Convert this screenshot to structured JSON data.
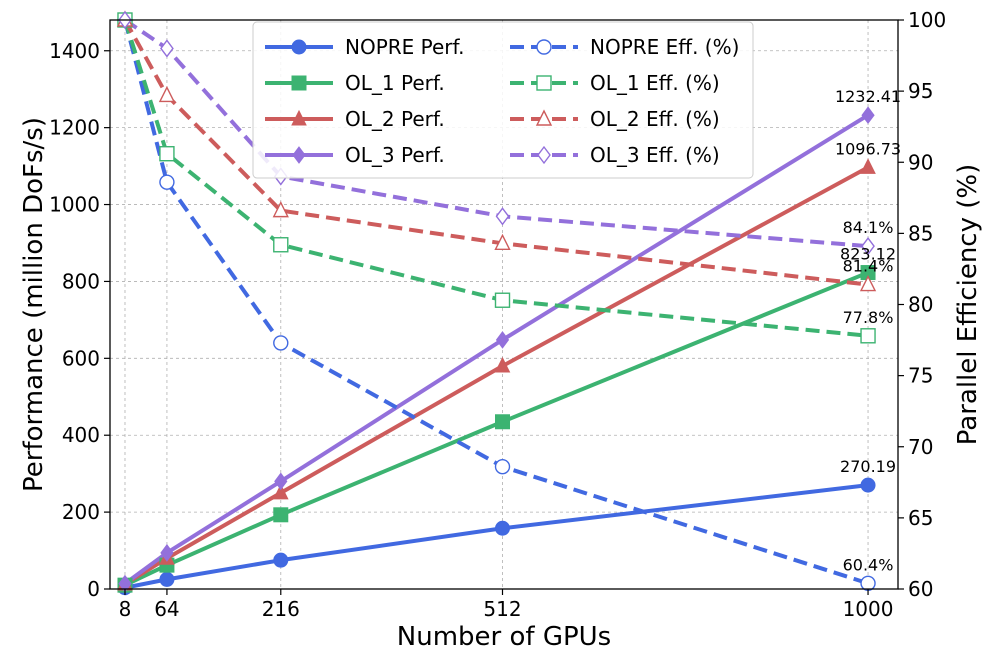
{
  "chart_data": {
    "type": "line",
    "x": [
      8,
      64,
      216,
      512,
      1000
    ],
    "xlabel": "Number of GPUs",
    "ylabel": "Performance (million DoFs/s)",
    "y2label": "Parallel Efficiency (%)",
    "x_ticks": [
      "8",
      "64",
      "216",
      "512",
      "1000"
    ],
    "ylim": [
      0,
      1480
    ],
    "y_ticks": [
      "0",
      "200",
      "400",
      "600",
      "800",
      "1000",
      "1200",
      "1400"
    ],
    "y2lim": [
      60,
      100
    ],
    "y2_ticks": [
      "60",
      "65",
      "70",
      "75",
      "80",
      "85",
      "90",
      "95",
      "100"
    ],
    "grid": true,
    "legend_position": "top-center",
    "series": [
      {
        "name": "NOPRE Perf.",
        "axis": "left",
        "color": "#4169E1",
        "style": "solid",
        "marker": "circle",
        "filled": true,
        "values": [
          3.4,
          25,
          75,
          158,
          270.19
        ]
      },
      {
        "name": "OL_1 Perf.",
        "axis": "left",
        "color": "#3CB371",
        "style": "solid",
        "marker": "square",
        "filled": true,
        "values": [
          10,
          62,
          193,
          435,
          823.12
        ]
      },
      {
        "name": "OL_2 Perf.",
        "axis": "left",
        "color": "#CD5C5C",
        "style": "solid",
        "marker": "triangle",
        "filled": true,
        "values": [
          13,
          80,
          250,
          580,
          1096.73
        ]
      },
      {
        "name": "OL_3 Perf.",
        "axis": "left",
        "color": "#9370DB",
        "style": "solid",
        "marker": "diamond",
        "filled": true,
        "values": [
          14,
          94,
          280,
          648,
          1232.41
        ]
      },
      {
        "name": "NOPRE Eff. (%)",
        "axis": "right",
        "color": "#4169E1",
        "style": "dashed",
        "marker": "circle",
        "filled": false,
        "values": [
          100,
          88.6,
          77.3,
          68.6,
          60.4
        ]
      },
      {
        "name": "OL_1 Eff. (%)",
        "axis": "right",
        "color": "#3CB371",
        "style": "dashed",
        "marker": "square",
        "filled": false,
        "values": [
          100,
          90.6,
          84.2,
          80.3,
          77.8
        ]
      },
      {
        "name": "OL_2 Eff. (%)",
        "axis": "right",
        "color": "#CD5C5C",
        "style": "dashed",
        "marker": "triangle",
        "filled": false,
        "values": [
          100,
          94.7,
          86.6,
          84.3,
          81.4
        ]
      },
      {
        "name": "OL_3 Eff. (%)",
        "axis": "right",
        "color": "#9370DB",
        "style": "dashed",
        "marker": "diamond",
        "filled": false,
        "values": [
          100,
          98,
          89,
          86.2,
          84.1
        ]
      }
    ],
    "annotations": [
      {
        "text": "1232.41",
        "x": 1000,
        "y": 1232.41,
        "axis": "left"
      },
      {
        "text": "1096.73",
        "x": 1000,
        "y": 1096.73,
        "axis": "left"
      },
      {
        "text": "823.12",
        "x": 1000,
        "y": 823.12,
        "axis": "left"
      },
      {
        "text": "270.19",
        "x": 1000,
        "y": 270.19,
        "axis": "left"
      },
      {
        "text": "84.1%",
        "x": 1000,
        "y": 84.1,
        "axis": "right"
      },
      {
        "text": "81.4%",
        "x": 1000,
        "y": 81.4,
        "axis": "right"
      },
      {
        "text": "77.8%",
        "x": 1000,
        "y": 77.8,
        "axis": "right"
      },
      {
        "text": "60.4%",
        "x": 1000,
        "y": 60.4,
        "axis": "right"
      }
    ]
  }
}
